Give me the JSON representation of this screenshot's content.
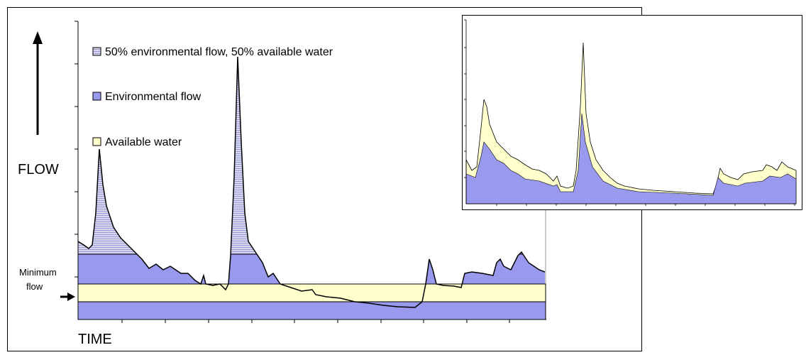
{
  "legend": [
    "50% environmental flow, 50% available water",
    "Environmental flow",
    "Available water"
  ],
  "axis_labels": {
    "y": "FLOW",
    "x": "TIME"
  },
  "annotation": [
    "Minimum",
    "flow"
  ]
}
